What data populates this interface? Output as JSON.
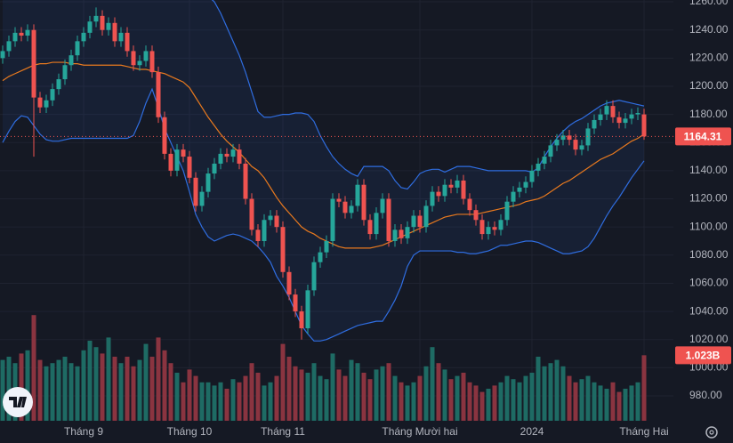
{
  "chart_data": {
    "type": "candlestick",
    "categories": [
      null,
      null,
      null,
      null,
      null,
      null,
      null,
      null,
      null,
      null,
      null,
      null,
      null,
      "Tháng 9",
      null,
      null,
      null,
      null,
      null,
      null,
      null,
      null,
      null,
      null,
      null,
      null,
      null,
      null,
      null,
      null,
      "Tháng 10",
      null,
      null,
      null,
      null,
      null,
      null,
      null,
      null,
      null,
      null,
      null,
      null,
      null,
      null,
      "Tháng 11",
      null,
      null,
      null,
      null,
      null,
      null,
      null,
      null,
      null,
      null,
      null,
      null,
      null,
      null,
      null,
      null,
      null,
      null,
      null,
      null,
      null,
      "Tháng Mười hai",
      null,
      null,
      null,
      null,
      null,
      null,
      null,
      null,
      null,
      null,
      null,
      null,
      null,
      null,
      null,
      null,
      null,
      "2024",
      null,
      null,
      null,
      null,
      null,
      null,
      null,
      null,
      null,
      null,
      null,
      null,
      null,
      null,
      null,
      null,
      null,
      "Tháng Hai"
    ],
    "open": [
      1220,
      1225,
      1232,
      1238,
      1236,
      1240,
      1192,
      1185,
      1190,
      1198,
      1205,
      1215,
      1222,
      1232,
      1238,
      1246,
      1250,
      1240,
      1245,
      1232,
      1238,
      1225,
      1215,
      1218,
      1225,
      1210,
      1178,
      1152,
      1140,
      1155,
      1150,
      1135,
      1115,
      1125,
      1138,
      1145,
      1152,
      1150,
      1155,
      1145,
      1120,
      1098,
      1090,
      1105,
      1108,
      1100,
      1068,
      1052,
      1040,
      1028,
      1055,
      1075,
      1082,
      1090,
      1120,
      1118,
      1110,
      1115,
      1130,
      1105,
      1095,
      1110,
      1120,
      1090,
      1098,
      1092,
      1100,
      1108,
      1100,
      1115,
      1125,
      1122,
      1130,
      1128,
      1133,
      1120,
      1112,
      1105,
      1095,
      1100,
      1098,
      1105,
      1118,
      1125,
      1128,
      1132,
      1140,
      1145,
      1150,
      1158,
      1162,
      1165,
      1162,
      1155,
      1158,
      1170,
      1176,
      1180,
      1186,
      1178,
      1174,
      1177,
      1180,
      1180
    ],
    "high": [
      1229,
      1236,
      1242,
      1242,
      1244,
      1244,
      1196,
      1194,
      1202,
      1209,
      1219,
      1226,
      1236,
      1242,
      1250,
      1256,
      1254,
      1249,
      1249,
      1242,
      1242,
      1229,
      1222,
      1229,
      1229,
      1214,
      1182,
      1156,
      1159,
      1159,
      1154,
      1139,
      1129,
      1142,
      1149,
      1156,
      1156,
      1159,
      1159,
      1149,
      1124,
      1102,
      1109,
      1112,
      1112,
      1104,
      1072,
      1056,
      1044,
      1059,
      1079,
      1086,
      1094,
      1124,
      1124,
      1122,
      1119,
      1134,
      1134,
      1109,
      1114,
      1124,
      1124,
      1102,
      1102,
      1104,
      1112,
      1112,
      1119,
      1129,
      1129,
      1134,
      1134,
      1137,
      1137,
      1124,
      1116,
      1109,
      1104,
      1104,
      1109,
      1122,
      1129,
      1132,
      1136,
      1144,
      1149,
      1154,
      1162,
      1166,
      1169,
      1169,
      1166,
      1162,
      1174,
      1180,
      1184,
      1190,
      1190,
      1182,
      1181,
      1184,
      1185,
      1184
    ],
    "low": [
      1216,
      1221,
      1228,
      1232,
      1232,
      1150,
      1181,
      1181,
      1186,
      1194,
      1201,
      1211,
      1218,
      1228,
      1234,
      1242,
      1236,
      1236,
      1228,
      1228,
      1221,
      1211,
      1211,
      1214,
      1206,
      1174,
      1148,
      1136,
      1136,
      1146,
      1131,
      1111,
      1111,
      1121,
      1134,
      1141,
      1146,
      1146,
      1141,
      1116,
      1094,
      1086,
      1086,
      1101,
      1096,
      1064,
      1048,
      1036,
      1020,
      1024,
      1051,
      1071,
      1078,
      1086,
      1114,
      1106,
      1106,
      1111,
      1101,
      1091,
      1091,
      1106,
      1086,
      1086,
      1088,
      1088,
      1096,
      1096,
      1096,
      1111,
      1118,
      1118,
      1124,
      1124,
      1116,
      1108,
      1101,
      1091,
      1091,
      1094,
      1094,
      1101,
      1114,
      1121,
      1124,
      1128,
      1136,
      1141,
      1146,
      1154,
      1158,
      1158,
      1151,
      1151,
      1154,
      1166,
      1172,
      1176,
      1174,
      1170,
      1170,
      1173,
      1176,
      1162
    ],
    "close": [
      1225,
      1232,
      1238,
      1236,
      1240,
      1192,
      1185,
      1190,
      1198,
      1205,
      1215,
      1222,
      1232,
      1238,
      1246,
      1250,
      1240,
      1245,
      1232,
      1238,
      1225,
      1215,
      1218,
      1225,
      1210,
      1178,
      1152,
      1140,
      1155,
      1150,
      1135,
      1115,
      1125,
      1138,
      1145,
      1152,
      1150,
      1155,
      1145,
      1120,
      1098,
      1090,
      1105,
      1108,
      1100,
      1068,
      1052,
      1040,
      1028,
      1055,
      1075,
      1082,
      1090,
      1120,
      1118,
      1110,
      1115,
      1130,
      1105,
      1095,
      1110,
      1120,
      1090,
      1098,
      1092,
      1100,
      1108,
      1100,
      1115,
      1125,
      1122,
      1130,
      1128,
      1133,
      1120,
      1112,
      1105,
      1095,
      1100,
      1098,
      1105,
      1118,
      1125,
      1128,
      1132,
      1140,
      1145,
      1150,
      1158,
      1162,
      1165,
      1162,
      1155,
      1158,
      1170,
      1176,
      1180,
      1186,
      1178,
      1174,
      1177,
      1180,
      1181,
      1164.31
    ],
    "volume": {
      "values": [
        0.95,
        1.0,
        0.9,
        1.05,
        1.1,
        1.65,
        0.95,
        0.85,
        0.9,
        0.95,
        1.0,
        0.9,
        0.85,
        1.1,
        1.25,
        1.15,
        1.05,
        1.3,
        1.0,
        0.9,
        1.0,
        0.85,
        0.95,
        1.2,
        1.0,
        1.3,
        1.1,
        0.9,
        0.75,
        0.6,
        0.8,
        0.7,
        0.6,
        0.6,
        0.55,
        0.6,
        0.5,
        0.65,
        0.6,
        0.7,
        0.9,
        0.75,
        0.55,
        0.6,
        0.7,
        1.2,
        1.0,
        0.85,
        0.8,
        0.75,
        0.9,
        0.7,
        0.65,
        1.05,
        0.8,
        0.7,
        0.95,
        0.9,
        0.75,
        0.65,
        0.8,
        0.85,
        0.9,
        0.7,
        0.6,
        0.55,
        0.6,
        0.7,
        0.85,
        1.15,
        0.9,
        0.8,
        0.65,
        0.7,
        0.75,
        0.6,
        0.55,
        0.45,
        0.5,
        0.55,
        0.6,
        0.7,
        0.65,
        0.6,
        0.7,
        0.75,
        1.0,
        0.85,
        0.9,
        0.95,
        0.85,
        0.7,
        0.6,
        0.65,
        0.7,
        0.6,
        0.55,
        0.5,
        0.6,
        0.45,
        0.5,
        0.55,
        0.6,
        1.023
      ],
      "last_label": "1.023B",
      "vlim": [
        0,
        6.57
      ],
      "up_color": "#1e6b64",
      "down_color": "#8a3440"
    },
    "bands": {
      "upper": [
        1272,
        1275,
        1278,
        1280,
        1282,
        1284,
        1285,
        1286,
        1287,
        1288,
        1289,
        1290,
        1290,
        1291,
        1291,
        1292,
        1292,
        1292,
        1291,
        1290,
        1289,
        1288,
        1287,
        1285,
        1283,
        1282,
        1281,
        1280,
        1279,
        1277,
        1274,
        1270,
        1267,
        1264,
        1260,
        1252,
        1242,
        1232,
        1222,
        1210,
        1196,
        1182,
        1178,
        1178,
        1179,
        1180,
        1180,
        1181,
        1181,
        1180,
        1175,
        1165,
        1157,
        1150,
        1145,
        1141,
        1138,
        1136,
        1143,
        1143,
        1143,
        1143,
        1140,
        1133,
        1128,
        1127,
        1132,
        1138,
        1140,
        1141,
        1141,
        1139,
        1141,
        1143,
        1143,
        1143,
        1142,
        1141,
        1140,
        1140,
        1140,
        1140,
        1140,
        1140,
        1140,
        1139,
        1142,
        1150,
        1157,
        1163,
        1168,
        1172,
        1175,
        1177,
        1180,
        1183,
        1186,
        1188,
        1189,
        1190,
        1189,
        1188,
        1187,
        1186
      ],
      "middle": [
        1204,
        1207,
        1209,
        1211,
        1213,
        1215,
        1216,
        1216,
        1217,
        1217,
        1217,
        1216,
        1216,
        1215,
        1215,
        1215,
        1215,
        1215,
        1215,
        1215,
        1214,
        1213,
        1212,
        1212,
        1211,
        1210,
        1209,
        1207,
        1205,
        1203,
        1199,
        1192,
        1185,
        1178,
        1172,
        1166,
        1161,
        1157,
        1153,
        1148,
        1143,
        1140,
        1135,
        1128,
        1121,
        1115,
        1110,
        1105,
        1100,
        1097,
        1095,
        1092,
        1090,
        1088,
        1086,
        1085,
        1085,
        1085,
        1085,
        1085,
        1086,
        1087,
        1089,
        1091,
        1093,
        1095,
        1097,
        1099,
        1101,
        1103,
        1105,
        1107,
        1108,
        1109,
        1109,
        1109,
        1109,
        1110,
        1111,
        1112,
        1113,
        1114,
        1115,
        1116,
        1118,
        1119,
        1120,
        1122,
        1125,
        1128,
        1131,
        1133,
        1136,
        1139,
        1142,
        1145,
        1148,
        1150,
        1152,
        1155,
        1158,
        1161,
        1163,
        1166
      ],
      "lower": [
        1160,
        1168,
        1175,
        1179,
        1178,
        1172,
        1166,
        1162,
        1161,
        1161,
        1162,
        1163,
        1163,
        1163,
        1163,
        1163,
        1163,
        1163,
        1163,
        1163,
        1163,
        1165,
        1175,
        1188,
        1198,
        1185,
        1170,
        1160,
        1150,
        1140,
        1125,
        1109,
        1100,
        1093,
        1090,
        1092,
        1094,
        1095,
        1094,
        1092,
        1090,
        1086,
        1081,
        1075,
        1065,
        1058,
        1050,
        1040,
        1030,
        1024,
        1019,
        1019,
        1020,
        1022,
        1024,
        1026,
        1028,
        1030,
        1031,
        1032,
        1033,
        1033,
        1040,
        1048,
        1058,
        1072,
        1080,
        1083,
        1083,
        1083,
        1083,
        1083,
        1083,
        1082,
        1082,
        1081,
        1081,
        1082,
        1083,
        1085,
        1087,
        1087,
        1088,
        1089,
        1090,
        1090,
        1089,
        1087,
        1085,
        1083,
        1081,
        1081,
        1082,
        1083,
        1086,
        1092,
        1100,
        1108,
        1115,
        1121,
        1128,
        1135,
        1141,
        1147
      ],
      "band_color": "#2f6de0",
      "middle_color": "#e8791e"
    },
    "up_color": "#26a69a",
    "down_color": "#ef5350",
    "ylim": [
      962.3,
      1261.3
    ],
    "yticks": [
      {
        "value": 980,
        "label": "980.00"
      },
      {
        "value": 1000,
        "label": "1000.00"
      },
      {
        "value": 1020,
        "label": "1020.00"
      },
      {
        "value": 1040,
        "label": "1040.00"
      },
      {
        "value": 1060,
        "label": "1060.00"
      },
      {
        "value": 1080,
        "label": "1080.00"
      },
      {
        "value": 1100,
        "label": "1100.00"
      },
      {
        "value": 1120,
        "label": "1120.00"
      },
      {
        "value": 1140,
        "label": "1140.00"
      },
      {
        "value": 1160,
        "label": "1160.00"
      },
      {
        "value": 1180,
        "label": "1180.00"
      },
      {
        "value": 1200,
        "label": "1200.00"
      },
      {
        "value": 1220,
        "label": "1220.00"
      },
      {
        "value": 1240,
        "label": "1240.00"
      },
      {
        "value": 1260,
        "label": "1260.00"
      }
    ],
    "grid": true
  }
}
